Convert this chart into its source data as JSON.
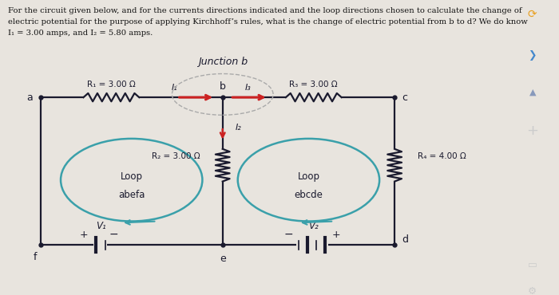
{
  "bg_color": "#dedad4",
  "main_bg": "#e8e4de",
  "sidebar_bg": "#2d2d2d",
  "sidebar_icons_bg": "#1a1a1a",
  "text_color": "#000000",
  "header_text_line1": "For the circuit given below, and for the currents directions indicated and the loop directions chosen to calculate the change of",
  "header_text_line2": "electric potential for the purpose of applying Kirchhoff’s rules, what is the change of electric potential from b to d? We do know",
  "header_text_line3": "I₁ = 3.00 amps, and I₂ = 5.80 amps.",
  "junction_label": "Junction b",
  "node_a": "a",
  "node_b": "b",
  "node_c": "c",
  "node_d": "d",
  "node_e": "e",
  "node_f": "f",
  "R1_label": "R₁ = 3.00 Ω",
  "R2_label": "R₂ = 3.00 Ω",
  "R3_label": "R₃ = 3.00 Ω",
  "R4_label": "R₄ = 4.00 Ω",
  "V1_label": "V₁",
  "V2_label": "V₂",
  "I1_label": "I₁",
  "I2_label": "I₂",
  "I3_label": "I₃",
  "loop1_label_line1": "Loop",
  "loop1_label_line2": "abefa",
  "loop2_label_line1": "Loop",
  "loop2_label_line2": "ebcde",
  "wire_color": "#1a1a2e",
  "arrow_color_red": "#cc2222",
  "loop_color": "#3aa0aa",
  "dashed_color": "#aaaaaa",
  "sidebar_color": "#3a3a4a"
}
